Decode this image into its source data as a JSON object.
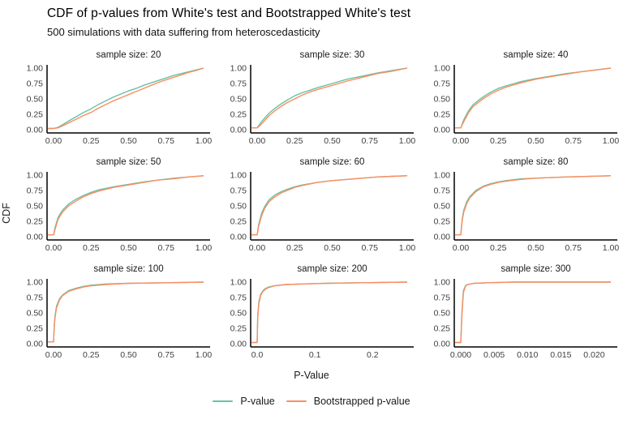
{
  "header": {
    "title": "CDF of p-values from White's test and Bootstrapped White's test",
    "subtitle": "500 simulations with data suffering from heteroscedasticity"
  },
  "axis": {
    "x_label": "P-Value",
    "y_label": "CDF"
  },
  "legend": {
    "items": [
      {
        "label": "P-value",
        "color": "#66C2A5"
      },
      {
        "label": "Bootstrapped p-value",
        "color": "#FC8D62"
      }
    ]
  },
  "chart_data": {
    "type": "line",
    "title": "CDF of p-values from White's test and Bootstrapped White's test",
    "subtitle": "500 simulations with data suffering from heteroscedasticity",
    "xlabel": "P-Value",
    "ylabel": "CDF",
    "grid": false,
    "legend_position": "bottom",
    "series_names": [
      "P-value",
      "Bootstrapped p-value"
    ],
    "series_colors": [
      "#66C2A5",
      "#FC8D62"
    ],
    "ylim": [
      0,
      1
    ],
    "yticks": {
      "values": [
        0,
        0.25,
        0.5,
        0.75,
        1
      ],
      "labels": [
        "0.00",
        "0.25",
        "0.50",
        "0.75",
        "1.00"
      ]
    },
    "panels": [
      {
        "facet": "sample size: 20",
        "xlim": [
          0,
          1
        ],
        "xticks": {
          "values": [
            0,
            0.25,
            0.5,
            0.75,
            1
          ],
          "labels": [
            "0.00",
            "0.25",
            "0.50",
            "0.75",
            "1.00"
          ]
        },
        "series": [
          {
            "name": "P-value",
            "x": [
              0,
              0.03,
              0.06,
              0.1,
              0.15,
              0.2,
              0.25,
              0.3,
              0.35,
              0.4,
              0.45,
              0.5,
              0.55,
              0.6,
              0.65,
              0.7,
              0.75,
              0.8,
              0.85,
              0.9,
              0.95,
              1.0
            ],
            "y": [
              0.02,
              0.04,
              0.08,
              0.14,
              0.21,
              0.28,
              0.34,
              0.41,
              0.47,
              0.53,
              0.58,
              0.63,
              0.67,
              0.72,
              0.76,
              0.8,
              0.84,
              0.88,
              0.91,
              0.94,
              0.97,
              1.0
            ]
          },
          {
            "name": "Bootstrapped p-value",
            "x": [
              0,
              0.03,
              0.06,
              0.1,
              0.15,
              0.2,
              0.25,
              0.3,
              0.35,
              0.4,
              0.45,
              0.5,
              0.55,
              0.6,
              0.65,
              0.7,
              0.75,
              0.8,
              0.85,
              0.9,
              0.95,
              1.0
            ],
            "y": [
              0.02,
              0.03,
              0.06,
              0.11,
              0.17,
              0.23,
              0.28,
              0.35,
              0.41,
              0.47,
              0.52,
              0.57,
              0.62,
              0.67,
              0.72,
              0.77,
              0.81,
              0.85,
              0.89,
              0.93,
              0.96,
              1.0
            ]
          }
        ]
      },
      {
        "facet": "sample size: 30",
        "xlim": [
          0,
          1
        ],
        "xticks": {
          "values": [
            0,
            0.25,
            0.5,
            0.75,
            1
          ],
          "labels": [
            "0.00",
            "0.25",
            "0.50",
            "0.75",
            "1.00"
          ]
        },
        "series": [
          {
            "name": "P-value",
            "x": [
              0,
              0.02,
              0.05,
              0.08,
              0.12,
              0.16,
              0.2,
              0.25,
              0.3,
              0.35,
              0.4,
              0.5,
              0.6,
              0.7,
              0.8,
              0.9,
              1.0
            ],
            "y": [
              0.03,
              0.1,
              0.19,
              0.27,
              0.35,
              0.42,
              0.48,
              0.55,
              0.6,
              0.64,
              0.68,
              0.75,
              0.82,
              0.87,
              0.92,
              0.96,
              1.0
            ]
          },
          {
            "name": "Bootstrapped p-value",
            "x": [
              0,
              0.02,
              0.05,
              0.08,
              0.12,
              0.16,
              0.2,
              0.25,
              0.3,
              0.35,
              0.4,
              0.5,
              0.6,
              0.7,
              0.8,
              0.9,
              1.0
            ],
            "y": [
              0.03,
              0.07,
              0.15,
              0.23,
              0.31,
              0.38,
              0.44,
              0.5,
              0.56,
              0.61,
              0.65,
              0.72,
              0.79,
              0.85,
              0.91,
              0.95,
              1.0
            ]
          }
        ]
      },
      {
        "facet": "sample size: 40",
        "xlim": [
          0,
          1
        ],
        "xticks": {
          "values": [
            0,
            0.25,
            0.5,
            0.75,
            1
          ],
          "labels": [
            "0.00",
            "0.25",
            "0.50",
            "0.75",
            "1.00"
          ]
        },
        "series": [
          {
            "name": "P-value",
            "x": [
              0,
              0.02,
              0.05,
              0.08,
              0.12,
              0.16,
              0.2,
              0.25,
              0.3,
              0.4,
              0.5,
              0.6,
              0.7,
              0.8,
              0.9,
              1.0
            ],
            "y": [
              0.03,
              0.16,
              0.3,
              0.4,
              0.48,
              0.55,
              0.61,
              0.67,
              0.71,
              0.78,
              0.83,
              0.87,
              0.91,
              0.94,
              0.97,
              1.0
            ]
          },
          {
            "name": "Bootstrapped p-value",
            "x": [
              0,
              0.02,
              0.05,
              0.08,
              0.12,
              0.16,
              0.2,
              0.25,
              0.3,
              0.4,
              0.5,
              0.6,
              0.7,
              0.8,
              0.9,
              1.0
            ],
            "y": [
              0.03,
              0.13,
              0.27,
              0.37,
              0.45,
              0.52,
              0.58,
              0.64,
              0.69,
              0.76,
              0.82,
              0.86,
              0.9,
              0.94,
              0.97,
              1.0
            ]
          }
        ]
      },
      {
        "facet": "sample size: 50",
        "xlim": [
          0,
          1
        ],
        "xticks": {
          "values": [
            0,
            0.25,
            0.5,
            0.75,
            1
          ],
          "labels": [
            "0.00",
            "0.25",
            "0.50",
            "0.75",
            "1.00"
          ]
        },
        "series": [
          {
            "name": "P-value",
            "x": [
              0,
              0.01,
              0.03,
              0.06,
              0.1,
              0.15,
              0.2,
              0.25,
              0.3,
              0.4,
              0.5,
              0.6,
              0.7,
              0.8,
              0.9,
              1.0
            ],
            "y": [
              0.03,
              0.15,
              0.31,
              0.43,
              0.53,
              0.61,
              0.67,
              0.72,
              0.76,
              0.81,
              0.85,
              0.89,
              0.92,
              0.95,
              0.97,
              0.99
            ]
          },
          {
            "name": "Bootstrapped p-value",
            "x": [
              0,
              0.01,
              0.03,
              0.06,
              0.1,
              0.15,
              0.2,
              0.25,
              0.3,
              0.4,
              0.5,
              0.6,
              0.7,
              0.8,
              0.9,
              1.0
            ],
            "y": [
              0.03,
              0.12,
              0.28,
              0.4,
              0.5,
              0.58,
              0.65,
              0.7,
              0.74,
              0.8,
              0.84,
              0.88,
              0.92,
              0.94,
              0.97,
              0.99
            ]
          }
        ]
      },
      {
        "facet": "sample size: 60",
        "xlim": [
          0,
          1
        ],
        "xticks": {
          "values": [
            0,
            0.25,
            0.5,
            0.75,
            1
          ],
          "labels": [
            "0.00",
            "0.25",
            "0.50",
            "0.75",
            "1.00"
          ]
        },
        "series": [
          {
            "name": "P-value",
            "x": [
              0,
              0.01,
              0.03,
              0.05,
              0.08,
              0.12,
              0.16,
              0.2,
              0.25,
              0.3,
              0.4,
              0.5,
              0.6,
              0.7,
              0.8,
              0.9,
              1.0
            ],
            "y": [
              0.03,
              0.2,
              0.38,
              0.49,
              0.6,
              0.68,
              0.73,
              0.77,
              0.81,
              0.84,
              0.88,
              0.91,
              0.93,
              0.95,
              0.97,
              0.98,
              0.99
            ]
          },
          {
            "name": "Bootstrapped p-value",
            "x": [
              0,
              0.01,
              0.03,
              0.05,
              0.08,
              0.12,
              0.16,
              0.2,
              0.25,
              0.3,
              0.4,
              0.5,
              0.6,
              0.7,
              0.8,
              0.9,
              1.0
            ],
            "y": [
              0.03,
              0.17,
              0.34,
              0.46,
              0.57,
              0.65,
              0.71,
              0.75,
              0.8,
              0.83,
              0.88,
              0.91,
              0.93,
              0.95,
              0.97,
              0.98,
              0.99
            ]
          }
        ]
      },
      {
        "facet": "sample size: 80",
        "xlim": [
          0,
          1
        ],
        "xticks": {
          "values": [
            0,
            0.25,
            0.5,
            0.75,
            1
          ],
          "labels": [
            "0.00",
            "0.25",
            "0.50",
            "0.75",
            "1.00"
          ]
        },
        "series": [
          {
            "name": "P-value",
            "x": [
              0,
              0.01,
              0.02,
              0.04,
              0.06,
              0.1,
              0.15,
              0.2,
              0.25,
              0.3,
              0.4,
              0.5,
              0.7,
              1.0
            ],
            "y": [
              0.03,
              0.3,
              0.43,
              0.57,
              0.65,
              0.75,
              0.82,
              0.86,
              0.89,
              0.91,
              0.94,
              0.95,
              0.97,
              0.99
            ]
          },
          {
            "name": "Bootstrapped p-value",
            "x": [
              0,
              0.01,
              0.02,
              0.04,
              0.06,
              0.1,
              0.15,
              0.2,
              0.25,
              0.3,
              0.4,
              0.5,
              0.7,
              1.0
            ],
            "y": [
              0.03,
              0.27,
              0.4,
              0.54,
              0.63,
              0.73,
              0.81,
              0.85,
              0.88,
              0.9,
              0.93,
              0.95,
              0.97,
              0.99
            ]
          }
        ]
      },
      {
        "facet": "sample size: 100",
        "xlim": [
          0,
          1
        ],
        "xticks": {
          "values": [
            0,
            0.25,
            0.5,
            0.75,
            1
          ],
          "labels": [
            "0.00",
            "0.25",
            "0.50",
            "0.75",
            "1.00"
          ]
        },
        "series": [
          {
            "name": "P-value",
            "x": [
              0,
              0.005,
              0.01,
              0.02,
              0.04,
              0.06,
              0.1,
              0.15,
              0.2,
              0.25,
              0.35,
              0.5,
              0.75,
              1.0
            ],
            "y": [
              0.03,
              0.3,
              0.46,
              0.61,
              0.73,
              0.79,
              0.86,
              0.9,
              0.93,
              0.95,
              0.97,
              0.98,
              0.99,
              1.0
            ]
          },
          {
            "name": "Bootstrapped p-value",
            "x": [
              0,
              0.005,
              0.01,
              0.02,
              0.04,
              0.06,
              0.1,
              0.15,
              0.2,
              0.25,
              0.35,
              0.5,
              0.75,
              1.0
            ],
            "y": [
              0.03,
              0.27,
              0.43,
              0.58,
              0.71,
              0.78,
              0.85,
              0.89,
              0.92,
              0.94,
              0.96,
              0.98,
              0.99,
              1.0
            ]
          }
        ]
      },
      {
        "facet": "sample size: 200",
        "xlim": [
          0,
          0.26
        ],
        "xticks": {
          "values": [
            0,
            0.1,
            0.2
          ],
          "labels": [
            "0.0",
            "0.1",
            "0.2"
          ]
        },
        "series": [
          {
            "name": "P-value",
            "x": [
              0,
              0.001,
              0.003,
              0.006,
              0.01,
              0.015,
              0.02,
              0.03,
              0.05,
              0.08,
              0.12,
              0.18,
              0.26
            ],
            "y": [
              0.02,
              0.45,
              0.68,
              0.8,
              0.86,
              0.9,
              0.92,
              0.94,
              0.96,
              0.97,
              0.98,
              0.99,
              1.0
            ]
          },
          {
            "name": "Bootstrapped p-value",
            "x": [
              0,
              0.001,
              0.003,
              0.006,
              0.01,
              0.015,
              0.02,
              0.03,
              0.05,
              0.08,
              0.12,
              0.18,
              0.26
            ],
            "y": [
              0.02,
              0.42,
              0.65,
              0.78,
              0.85,
              0.89,
              0.91,
              0.94,
              0.96,
              0.97,
              0.98,
              0.99,
              1.0
            ]
          }
        ]
      },
      {
        "facet": "sample size: 300",
        "xlim": [
          0,
          0.0225
        ],
        "xticks": {
          "values": [
            0,
            0.005,
            0.01,
            0.015,
            0.02
          ],
          "labels": [
            "0.000",
            "0.005",
            "0.010",
            "0.015",
            "0.020"
          ]
        },
        "series": [
          {
            "name": "P-value",
            "x": [
              0,
              0.0002,
              0.0004,
              0.0007,
              0.001,
              0.0015,
              0.002,
              0.004,
              0.008,
              0.014,
              0.0225
            ],
            "y": [
              0.02,
              0.55,
              0.86,
              0.94,
              0.96,
              0.97,
              0.98,
              0.99,
              1.0,
              1.0,
              1.0
            ]
          },
          {
            "name": "Bootstrapped p-value",
            "x": [
              0,
              0.0002,
              0.0004,
              0.0007,
              0.001,
              0.0015,
              0.002,
              0.004,
              0.008,
              0.014,
              0.0225
            ],
            "y": [
              0.02,
              0.5,
              0.83,
              0.93,
              0.96,
              0.97,
              0.98,
              0.99,
              1.0,
              1.0,
              1.0
            ]
          }
        ]
      }
    ]
  }
}
